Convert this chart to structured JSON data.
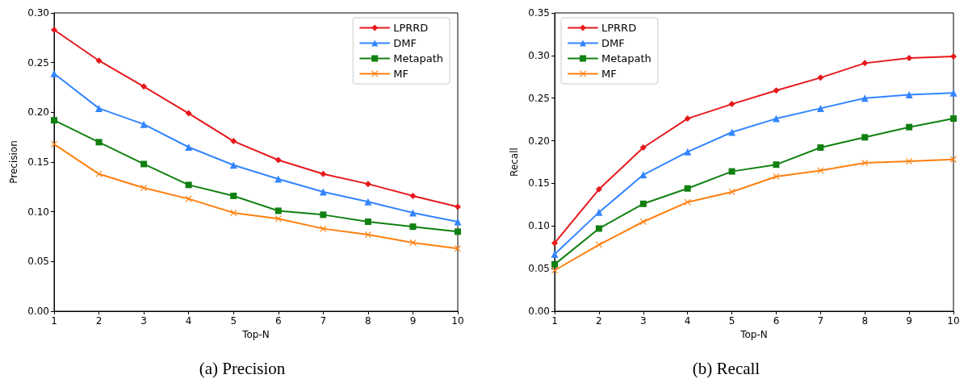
{
  "chart_data": [
    {
      "type": "line",
      "title": "(a) Precision",
      "xlabel": "Top-N",
      "ylabel": "Precision",
      "x": [
        1,
        2,
        3,
        4,
        5,
        6,
        7,
        8,
        9,
        10
      ],
      "xlim": [
        1,
        10
      ],
      "xticks": [
        1,
        2,
        3,
        4,
        5,
        6,
        7,
        8,
        9,
        10
      ],
      "ylim": [
        0,
        0.3
      ],
      "yticks": [
        {
          "value": 0,
          "label": "0.00"
        },
        {
          "value": 0.05,
          "label": "0.05"
        },
        {
          "value": 0.1,
          "label": "0.10"
        },
        {
          "value": 0.15,
          "label": "0.15"
        },
        {
          "value": 0.2,
          "label": "0.20"
        },
        {
          "value": 0.25,
          "label": "0.25"
        },
        {
          "value": 0.3,
          "label": "0.30"
        }
      ],
      "grid": false,
      "legend": "top right",
      "line_style": "solid",
      "series": [
        {
          "name": "LPRRD",
          "color": "#e6191c",
          "marker": "diamond",
          "values": [
            0.283,
            0.252,
            0.226,
            0.199,
            0.171,
            0.152,
            0.138,
            0.128,
            0.116,
            0.105
          ]
        },
        {
          "name": "DMF",
          "color": "#3385ff",
          "marker": "triangle",
          "values": [
            0.239,
            0.204,
            0.188,
            0.165,
            0.147,
            0.133,
            0.12,
            0.11,
            0.099,
            0.09
          ]
        },
        {
          "name": "Metapath",
          "color": "#108010",
          "marker": "square",
          "values": [
            0.192,
            0.17,
            0.148,
            0.127,
            0.116,
            0.101,
            0.097,
            0.09,
            0.085,
            0.08
          ]
        },
        {
          "name": "MF",
          "color": "#ff7f0e",
          "marker": "cross",
          "values": [
            0.168,
            0.138,
            0.124,
            0.113,
            0.099,
            0.093,
            0.083,
            0.077,
            0.069,
            0.063
          ]
        }
      ]
    },
    {
      "type": "line",
      "title": "(b) Recall",
      "xlabel": "Top-N",
      "ylabel": "Recall",
      "x": [
        1,
        2,
        3,
        4,
        5,
        6,
        7,
        8,
        9,
        10
      ],
      "xlim": [
        1,
        10
      ],
      "xticks": [
        1,
        2,
        3,
        4,
        5,
        6,
        7,
        8,
        9,
        10
      ],
      "ylim": [
        0,
        0.35
      ],
      "yticks": [
        {
          "value": 0,
          "label": "0.00"
        },
        {
          "value": 0.05,
          "label": "0.05"
        },
        {
          "value": 0.1,
          "label": "0.10"
        },
        {
          "value": 0.15,
          "label": "0.15"
        },
        {
          "value": 0.2,
          "label": "0.20"
        },
        {
          "value": 0.25,
          "label": "0.25"
        },
        {
          "value": 0.3,
          "label": "0.30"
        },
        {
          "value": 0.35,
          "label": "0.35"
        }
      ],
      "grid": false,
      "legend": "top left",
      "line_style": "solid",
      "series": [
        {
          "name": "LPRRD",
          "color": "#e6191c",
          "marker": "diamond",
          "values": [
            0.08,
            0.143,
            0.192,
            0.226,
            0.243,
            0.259,
            0.274,
            0.291,
            0.297,
            0.299
          ]
        },
        {
          "name": "DMF",
          "color": "#3385ff",
          "marker": "triangle",
          "values": [
            0.067,
            0.116,
            0.16,
            0.187,
            0.21,
            0.226,
            0.238,
            0.25,
            0.254,
            0.256
          ]
        },
        {
          "name": "Metapath",
          "color": "#108010",
          "marker": "square",
          "values": [
            0.055,
            0.097,
            0.126,
            0.144,
            0.164,
            0.172,
            0.192,
            0.204,
            0.216,
            0.226
          ]
        },
        {
          "name": "MF",
          "color": "#ff7f0e",
          "marker": "cross",
          "values": [
            0.048,
            0.078,
            0.105,
            0.128,
            0.14,
            0.158,
            0.165,
            0.174,
            0.176,
            0.178
          ]
        }
      ]
    }
  ]
}
